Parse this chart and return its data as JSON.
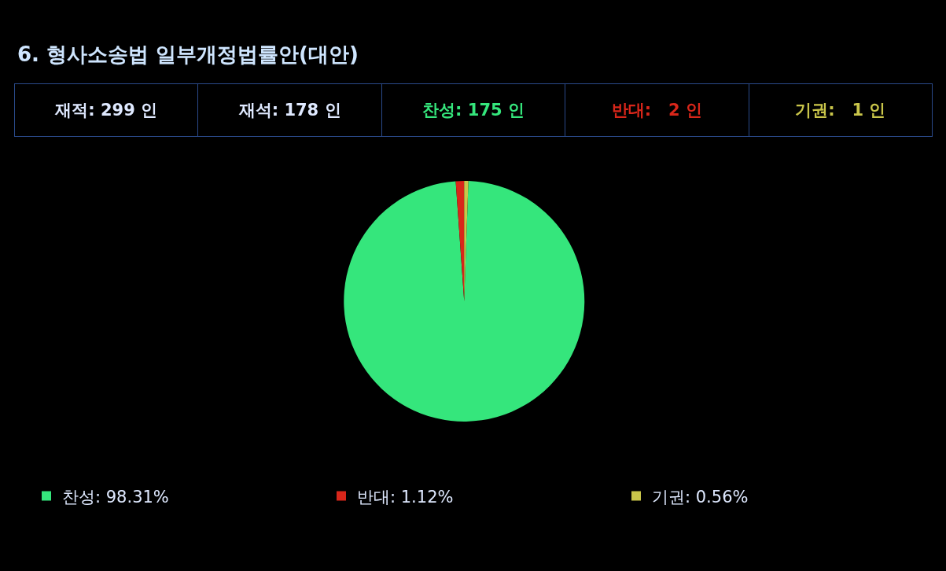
{
  "chart_data": {
    "type": "pie",
    "title": "6. 형사소송법 일부개정법률안(대안)",
    "annotations": [
      "재적: 299 인",
      "재석: 178 인",
      "찬성: 175 인",
      "반대:   2 인",
      "기권:   1 인"
    ],
    "categories": [
      "찬성: 98.31%",
      "반대: 1.12%",
      "기권: 0.56%"
    ],
    "values": [
      98.31,
      1.12,
      0.56
    ],
    "colors": [
      "#35e67c",
      "#d8261a",
      "#c9c54a"
    ],
    "legend": "bottom"
  }
}
